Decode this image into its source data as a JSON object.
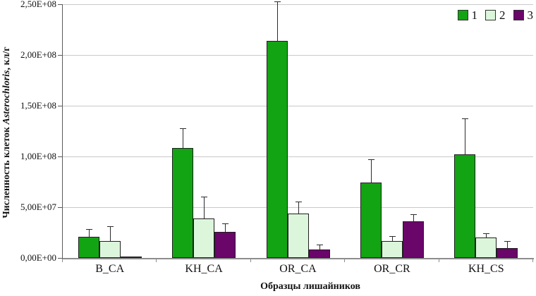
{
  "chart_data": {
    "type": "bar",
    "title": "",
    "xlabel": "Образцы лишайников",
    "ylabel_prefix": "Численность клеток ",
    "ylabel_italic": "Asterochloris",
    "ylabel_suffix": ", кл/г",
    "categories": [
      "B_CA",
      "KH_CA",
      "OR_CA",
      "OR_CR",
      "KH_CS"
    ],
    "series": [
      {
        "name": "1",
        "color": "#12a412",
        "values": [
          20500000.0,
          108000000.0,
          214000000.0,
          74500000.0,
          102000000.0
        ],
        "errors": [
          7000000.0,
          19000000.0,
          38000000.0,
          22000000.0,
          35000000.0
        ]
      },
      {
        "name": "2",
        "color": "#dcf6dc",
        "values": [
          17000000.0,
          39000000.0,
          44000000.0,
          17000000.0,
          20000000.0
        ],
        "errors": [
          14000000.0,
          21000000.0,
          11000000.0,
          4000000.0,
          3500000.0
        ]
      },
      {
        "name": "3",
        "color": "#6a056a",
        "values": [
          700000.0,
          26000000.0,
          8500000.0,
          36000000.0,
          9500000.0
        ],
        "errors": [
          0,
          7500000.0,
          4500000.0,
          6000000.0,
          6000000.0
        ]
      }
    ],
    "yticks": [
      {
        "v": 0,
        "label": "0,00E+00"
      },
      {
        "v": 50000000.0,
        "label": "5,00E+07"
      },
      {
        "v": 100000000.0,
        "label": "1,00E+08"
      },
      {
        "v": 150000000.0,
        "label": "1,50E+08"
      },
      {
        "v": 200000000.0,
        "label": "2,00E+08"
      },
      {
        "v": 250000000.0,
        "label": "2,50E+08"
      }
    ],
    "ymax": 250000000.0,
    "grid": "horizontal",
    "legend_position": "top-right",
    "colors": {
      "gridline": "#c9c9c9",
      "axis": "#8c8c8c",
      "error_bar": "#2b2b2b"
    }
  }
}
